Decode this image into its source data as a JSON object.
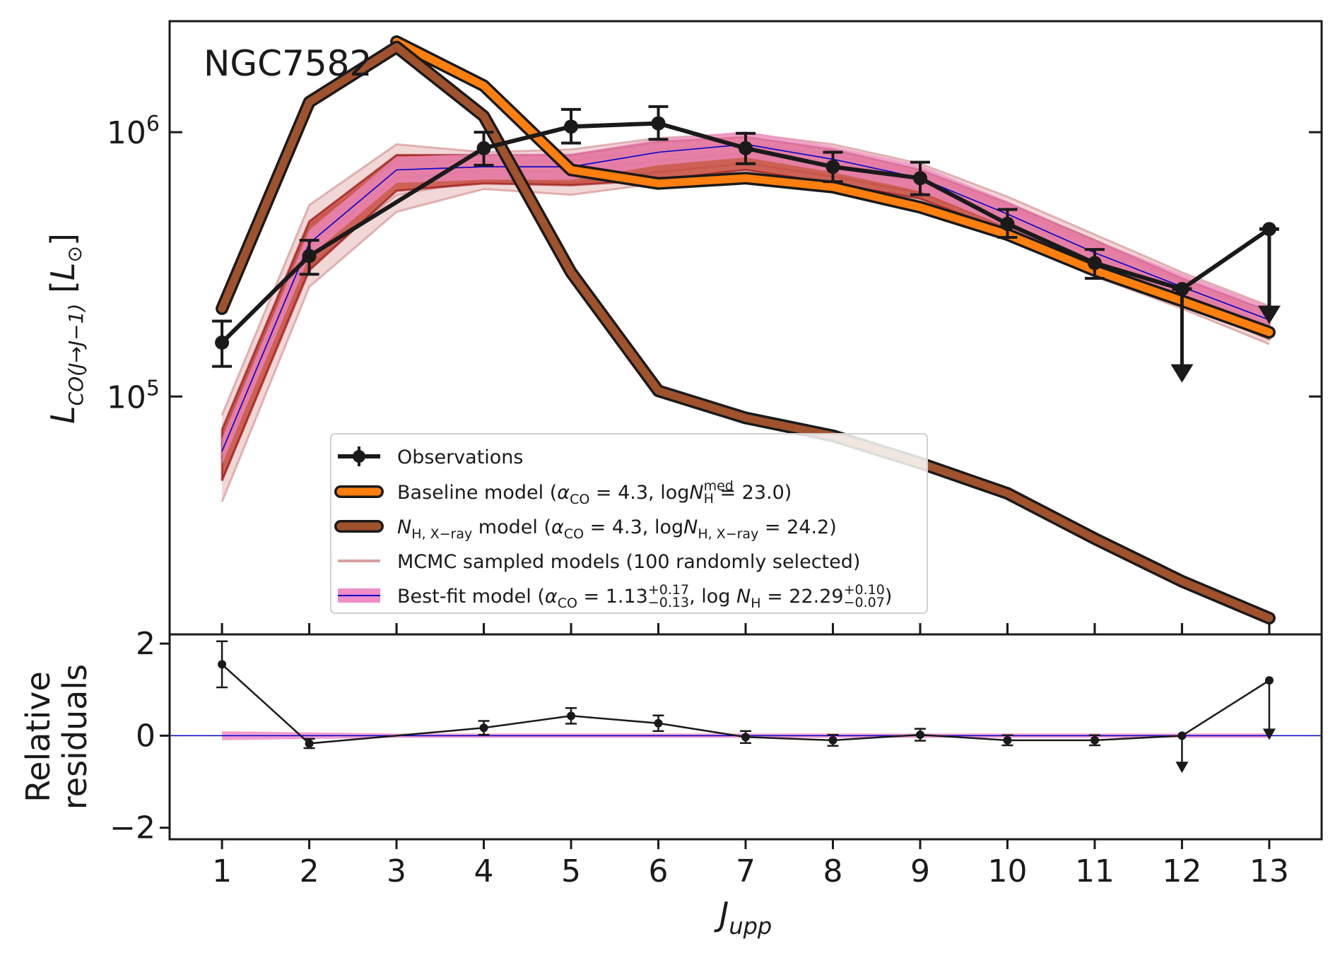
{
  "chart_data": [
    {
      "type": "line",
      "panel": "main",
      "annotation": "NGC7582",
      "xlabel": "J_upp",
      "ylabel": "L_CO(J→J−1) [L_⊙]",
      "yscale": "log",
      "xlim": [
        0.4,
        13.6
      ],
      "ylim_log10": [
        4.1,
        6.42
      ],
      "y_tick_values": [
        100000,
        1000000
      ],
      "y_tick_labels": [
        {
          "base": "10",
          "exp": "5"
        },
        {
          "base": "10",
          "exp": "6"
        }
      ],
      "x": [
        1,
        2,
        3,
        4,
        5,
        6,
        7,
        8,
        9,
        10,
        11,
        12,
        13
      ],
      "x_tick_labels": [
        "1",
        "2",
        "3",
        "4",
        "5",
        "6",
        "7",
        "8",
        "9",
        "10",
        "11",
        "12",
        "13"
      ],
      "series": [
        {
          "name": "Observations",
          "kind": "observations",
          "color": "#1a1a1a",
          "points": [
            {
              "x": 1,
              "y": 160000,
              "err_lo": 30000,
              "err_hi": 33000
            },
            {
              "x": 2,
              "y": 340000,
              "err_lo": 50000,
              "err_hi": 50000
            },
            {
              "x": 4,
              "y": 870000,
              "err_lo": 120000,
              "err_hi": 130000
            },
            {
              "x": 5,
              "y": 1050000,
              "err_lo": 140000,
              "err_hi": 170000
            },
            {
              "x": 6,
              "y": 1080000,
              "err_lo": 140000,
              "err_hi": 170000
            },
            {
              "x": 7,
              "y": 870000,
              "err_lo": 110000,
              "err_hi": 120000
            },
            {
              "x": 8,
              "y": 740000,
              "err_lo": 90000,
              "err_hi": 100000
            },
            {
              "x": 9,
              "y": 670000,
              "err_lo": 90000,
              "err_hi": 100000
            },
            {
              "x": 10,
              "y": 450000,
              "err_lo": 50000,
              "err_hi": 60000
            },
            {
              "x": 11,
              "y": 320000,
              "err_lo": 40000,
              "err_hi": 40000
            },
            {
              "x": 12,
              "y": 255000,
              "upper_limit": true,
              "arrow_to": 120000
            },
            {
              "x": 13,
              "y": 430000,
              "upper_limit": true,
              "arrow_to": 200000
            }
          ]
        },
        {
          "name": "Baseline model",
          "kind": "baseline",
          "color": "#ff7f0e",
          "values": [
            null,
            null,
            2200000,
            1500000,
            720000,
            640000,
            670000,
            620000,
            520000,
            410000,
            300000,
            230000,
            175000
          ]
        },
        {
          "name": "N_H,X-ray model",
          "kind": "nh_xray",
          "color": "#a0522d",
          "values": [
            215000,
            1300000,
            2100000,
            1150000,
            295000,
            105000,
            83000,
            71000,
            56000,
            43000,
            29000,
            20000,
            14500
          ]
        },
        {
          "name": "MCMC sampled models",
          "kind": "mcmc",
          "color": "#c0392b",
          "band_low": [
            48000,
            300000,
            600000,
            640000,
            630000,
            660000,
            720000,
            640000,
            560000,
            420000,
            300000,
            225000,
            165000
          ],
          "band_high": [
            75000,
            460000,
            820000,
            820000,
            820000,
            920000,
            960000,
            860000,
            720000,
            540000,
            390000,
            280000,
            210000
          ],
          "pale_low": [
            40000,
            260000,
            500000,
            610000,
            580000,
            640000,
            700000,
            620000,
            540000,
            400000,
            285000,
            215000,
            158000
          ],
          "pale_high": [
            85000,
            530000,
            900000,
            840000,
            860000,
            950000,
            990000,
            900000,
            760000,
            570000,
            410000,
            295000,
            220000
          ]
        },
        {
          "name": "Best-fit model",
          "kind": "bestfit",
          "color": "#0000cc",
          "band_color": "#f08cc8",
          "values": [
            62000,
            380000,
            720000,
            740000,
            740000,
            840000,
            900000,
            790000,
            670000,
            490000,
            350000,
            260000,
            195000
          ]
        }
      ],
      "legend": {
        "placement": "lower-center",
        "entries": [
          {
            "kind": "observations",
            "parts": [
              {
                "t": "Observations"
              }
            ]
          },
          {
            "kind": "baseline",
            "parts": [
              {
                "t": "Baseline model ("
              },
              {
                "t": "α",
                "italic": true
              },
              {
                "t": "CO",
                "sub": true
              },
              {
                "t": " = 4.3, log"
              },
              {
                "t": "N",
                "italic": true
              },
              {
                "t": "med",
                "sup": true
              },
              {
                "t": "H",
                "sub": true,
                "after_sup": true
              },
              {
                "t": " = 23.0)"
              }
            ]
          },
          {
            "kind": "nh_xray",
            "parts": [
              {
                "t": "N",
                "italic": true
              },
              {
                "t": "H, X−ray",
                "sub": true
              },
              {
                "t": " model ("
              },
              {
                "t": "α",
                "italic": true
              },
              {
                "t": "CO",
                "sub": true
              },
              {
                "t": " = 4.3, log"
              },
              {
                "t": "N",
                "italic": true
              },
              {
                "t": "H, X−ray",
                "sub": true
              },
              {
                "t": " = 24.2)"
              }
            ]
          },
          {
            "kind": "mcmc",
            "parts": [
              {
                "t": "MCMC sampled models (100 randomly selected)"
              }
            ]
          },
          {
            "kind": "bestfit",
            "parts": [
              {
                "t": "Best-fit model ("
              },
              {
                "t": "α",
                "italic": true
              },
              {
                "t": "CO",
                "sub": true
              },
              {
                "t": " = 1.13"
              },
              {
                "t": "+0.17",
                "sup": true
              },
              {
                "t": "−0.13",
                "sub": true,
                "after_sup": true
              },
              {
                "t": ", log "
              },
              {
                "t": "N",
                "italic": true
              },
              {
                "t": "H",
                "sub": true
              },
              {
                "t": " = 22.29"
              },
              {
                "t": "+0.10",
                "sup": true
              },
              {
                "t": "−0.07",
                "sub": true,
                "after_sup": true
              },
              {
                "t": ")"
              }
            ]
          }
        ]
      }
    },
    {
      "type": "line",
      "panel": "residuals",
      "ylabel_lines": [
        "Relative",
        "residuals"
      ],
      "xlabel": "J_upp",
      "ylim": [
        -2.25,
        2.2
      ],
      "y_ticks": [
        -2,
        0,
        2
      ],
      "y_tick_labels": [
        "−2",
        "0",
        "2"
      ],
      "zero_line_color": "#0000cc",
      "band_color": "#f08cc8",
      "band": {
        "x": [
          1,
          3,
          13
        ],
        "half_width": [
          0.09,
          0.01,
          0.01
        ]
      },
      "points": [
        {
          "x": 1,
          "y": 1.55,
          "err": 0.5
        },
        {
          "x": 2,
          "y": -0.17,
          "err": 0.1
        },
        {
          "x": 4,
          "y": 0.17,
          "err": 0.15
        },
        {
          "x": 5,
          "y": 0.43,
          "err": 0.17
        },
        {
          "x": 6,
          "y": 0.27,
          "err": 0.17
        },
        {
          "x": 7,
          "y": -0.03,
          "err": 0.13
        },
        {
          "x": 8,
          "y": -0.1,
          "err": 0.12
        },
        {
          "x": 9,
          "y": 0.02,
          "err": 0.13
        },
        {
          "x": 10,
          "y": -0.1,
          "err": 0.11
        },
        {
          "x": 11,
          "y": -0.1,
          "err": 0.11
        },
        {
          "x": 12,
          "y": 0.0,
          "upper_limit": true,
          "arrow_to": -0.72
        },
        {
          "x": 13,
          "y": 1.2,
          "upper_limit": true,
          "arrow_to": 0.0
        }
      ]
    }
  ]
}
